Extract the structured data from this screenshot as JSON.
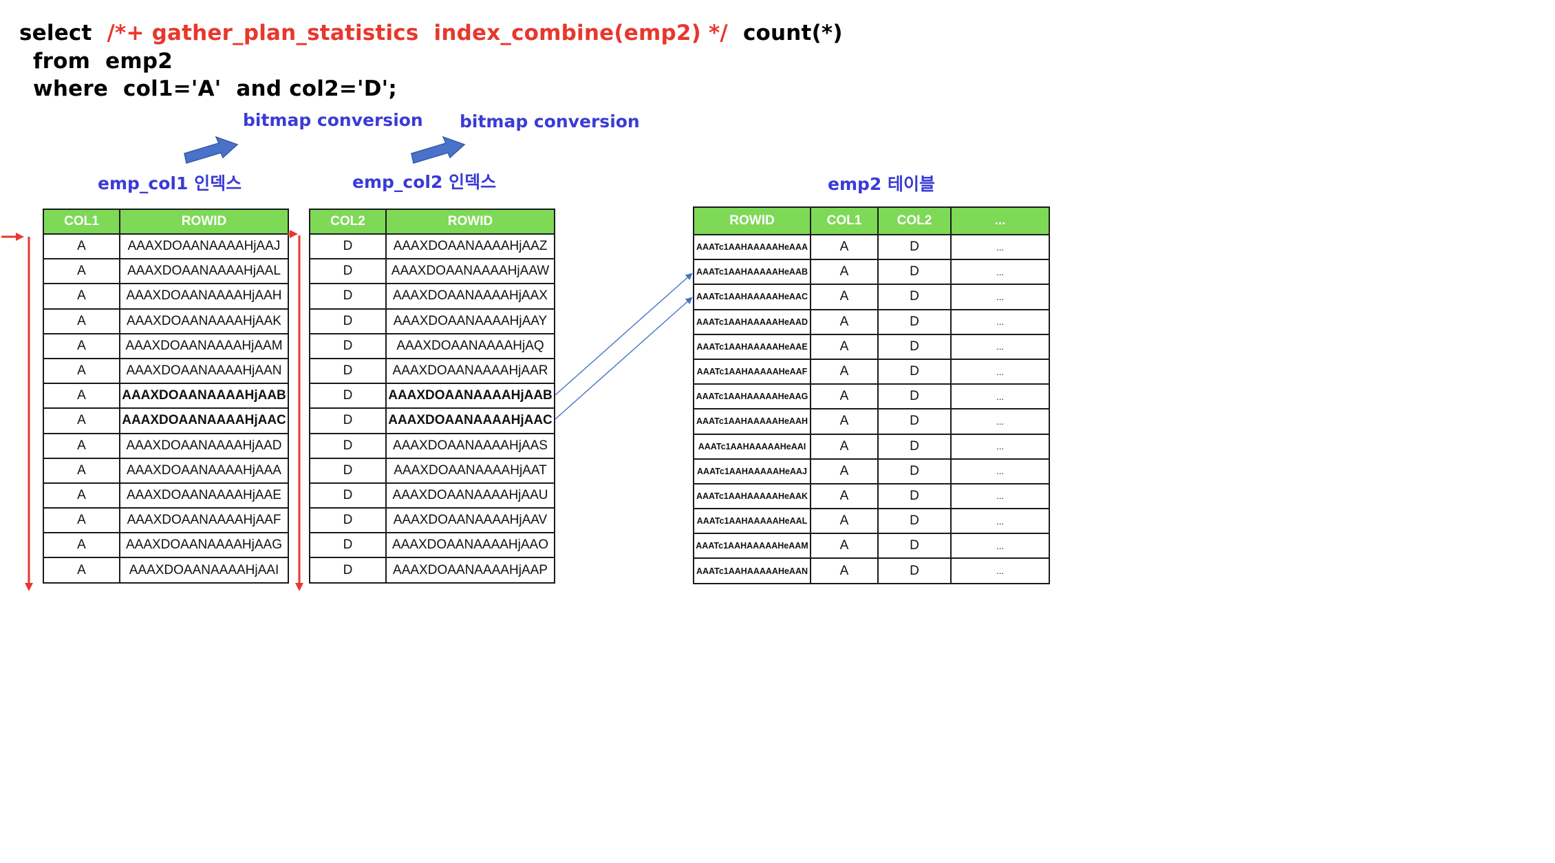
{
  "sql": {
    "select_kw": "select",
    "hint": "/*+ gather_plan_statistics  index_combine(emp2) */",
    "count_expr": "count(*)",
    "line2": "from  emp2",
    "line3": "where  col1='A'  and col2='D';"
  },
  "labels": {
    "conversion1": "bitmap conversion",
    "conversion2": "bitmap conversion",
    "index1_title": "emp_col1 인덱스",
    "index2_title": "emp_col2 인덱스",
    "table_title": "emp2 테이블"
  },
  "colors": {
    "header_bg": "#7ed957",
    "hint_red": "#e8372c",
    "label_blue": "#3a3bd6",
    "arrow_blue": "#4472c4",
    "scan_red": "#e8372c"
  },
  "index1": {
    "headers": [
      "COL1",
      "ROWID"
    ],
    "rows": [
      [
        "A",
        "AAAXDOAANAAAAHjAAJ"
      ],
      [
        "A",
        "AAAXDOAANAAAAHjAAL"
      ],
      [
        "A",
        "AAAXDOAANAAAAHjAAH"
      ],
      [
        "A",
        "AAAXDOAANAAAAHjAAK"
      ],
      [
        "A",
        "AAAXDOAANAAAAHjAAM"
      ],
      [
        "A",
        "AAAXDOAANAAAAHjAAN"
      ],
      [
        "A",
        "AAAXDOAANAAAAHjAAB"
      ],
      [
        "A",
        "AAAXDOAANAAAAHjAAC"
      ],
      [
        "A",
        "AAAXDOAANAAAAHjAAD"
      ],
      [
        "A",
        "AAAXDOAANAAAAHjAAA"
      ],
      [
        "A",
        "AAAXDOAANAAAAHjAAE"
      ],
      [
        "A",
        "AAAXDOAANAAAAHjAAF"
      ],
      [
        "A",
        "AAAXDOAANAAAAHjAAG"
      ],
      [
        "A",
        "AAAXDOAANAAAAHjAAI"
      ]
    ],
    "bold_rows": [
      6,
      7
    ]
  },
  "index2": {
    "headers": [
      "COL2",
      "ROWID"
    ],
    "rows": [
      [
        "D",
        "AAAXDOAANAAAAHjAAZ"
      ],
      [
        "D",
        "AAAXDOAANAAAAHjAAW"
      ],
      [
        "D",
        "AAAXDOAANAAAAHjAAX"
      ],
      [
        "D",
        "AAAXDOAANAAAAHjAAY"
      ],
      [
        "D",
        "AAAXDOAANAAAAHjAQ"
      ],
      [
        "D",
        "AAAXDOAANAAAAHjAAR"
      ],
      [
        "D",
        "AAAXDOAANAAAAHjAAB"
      ],
      [
        "D",
        "AAAXDOAANAAAAHjAAC"
      ],
      [
        "D",
        "AAAXDOAANAAAAHjAAS"
      ],
      [
        "D",
        "AAAXDOAANAAAAHjAAT"
      ],
      [
        "D",
        "AAAXDOAANAAAAHjAAU"
      ],
      [
        "D",
        "AAAXDOAANAAAAHjAAV"
      ],
      [
        "D",
        "AAAXDOAANAAAAHjAAO"
      ],
      [
        "D",
        "AAAXDOAANAAAAHjAAP"
      ]
    ],
    "bold_rows": [
      6,
      7
    ]
  },
  "table": {
    "headers": [
      "ROWID",
      "COL1",
      "COL2",
      "..."
    ],
    "rows": [
      [
        "AAATc1AAHAAAAAHeAAA",
        "A",
        "D",
        "..."
      ],
      [
        "AAATc1AAHAAAAAHeAAB",
        "A",
        "D",
        "..."
      ],
      [
        "AAATc1AAHAAAAAHeAAC",
        "A",
        "D",
        "..."
      ],
      [
        "AAATc1AAHAAAAAHeAAD",
        "A",
        "D",
        "..."
      ],
      [
        "AAATc1AAHAAAAAHeAAE",
        "A",
        "D",
        "..."
      ],
      [
        "AAATc1AAHAAAAAHeAAF",
        "A",
        "D",
        "..."
      ],
      [
        "AAATc1AAHAAAAAHeAAG",
        "A",
        "D",
        "..."
      ],
      [
        "AAATc1AAHAAAAAHeAAH",
        "A",
        "D",
        "..."
      ],
      [
        "AAATc1AAHAAAAAHeAAI",
        "A",
        "D",
        "..."
      ],
      [
        "AAATc1AAHAAAAAHeAAJ",
        "A",
        "D",
        "..."
      ],
      [
        "AAATc1AAHAAAAAHeAAK",
        "A",
        "D",
        "..."
      ],
      [
        "AAATc1AAHAAAAAHeAAL",
        "A",
        "D",
        "..."
      ],
      [
        "AAATc1AAHAAAAAHeAAM",
        "A",
        "D",
        "..."
      ],
      [
        "AAATc1AAHAAAAAHeAAN",
        "A",
        "D",
        "..."
      ]
    ]
  }
}
